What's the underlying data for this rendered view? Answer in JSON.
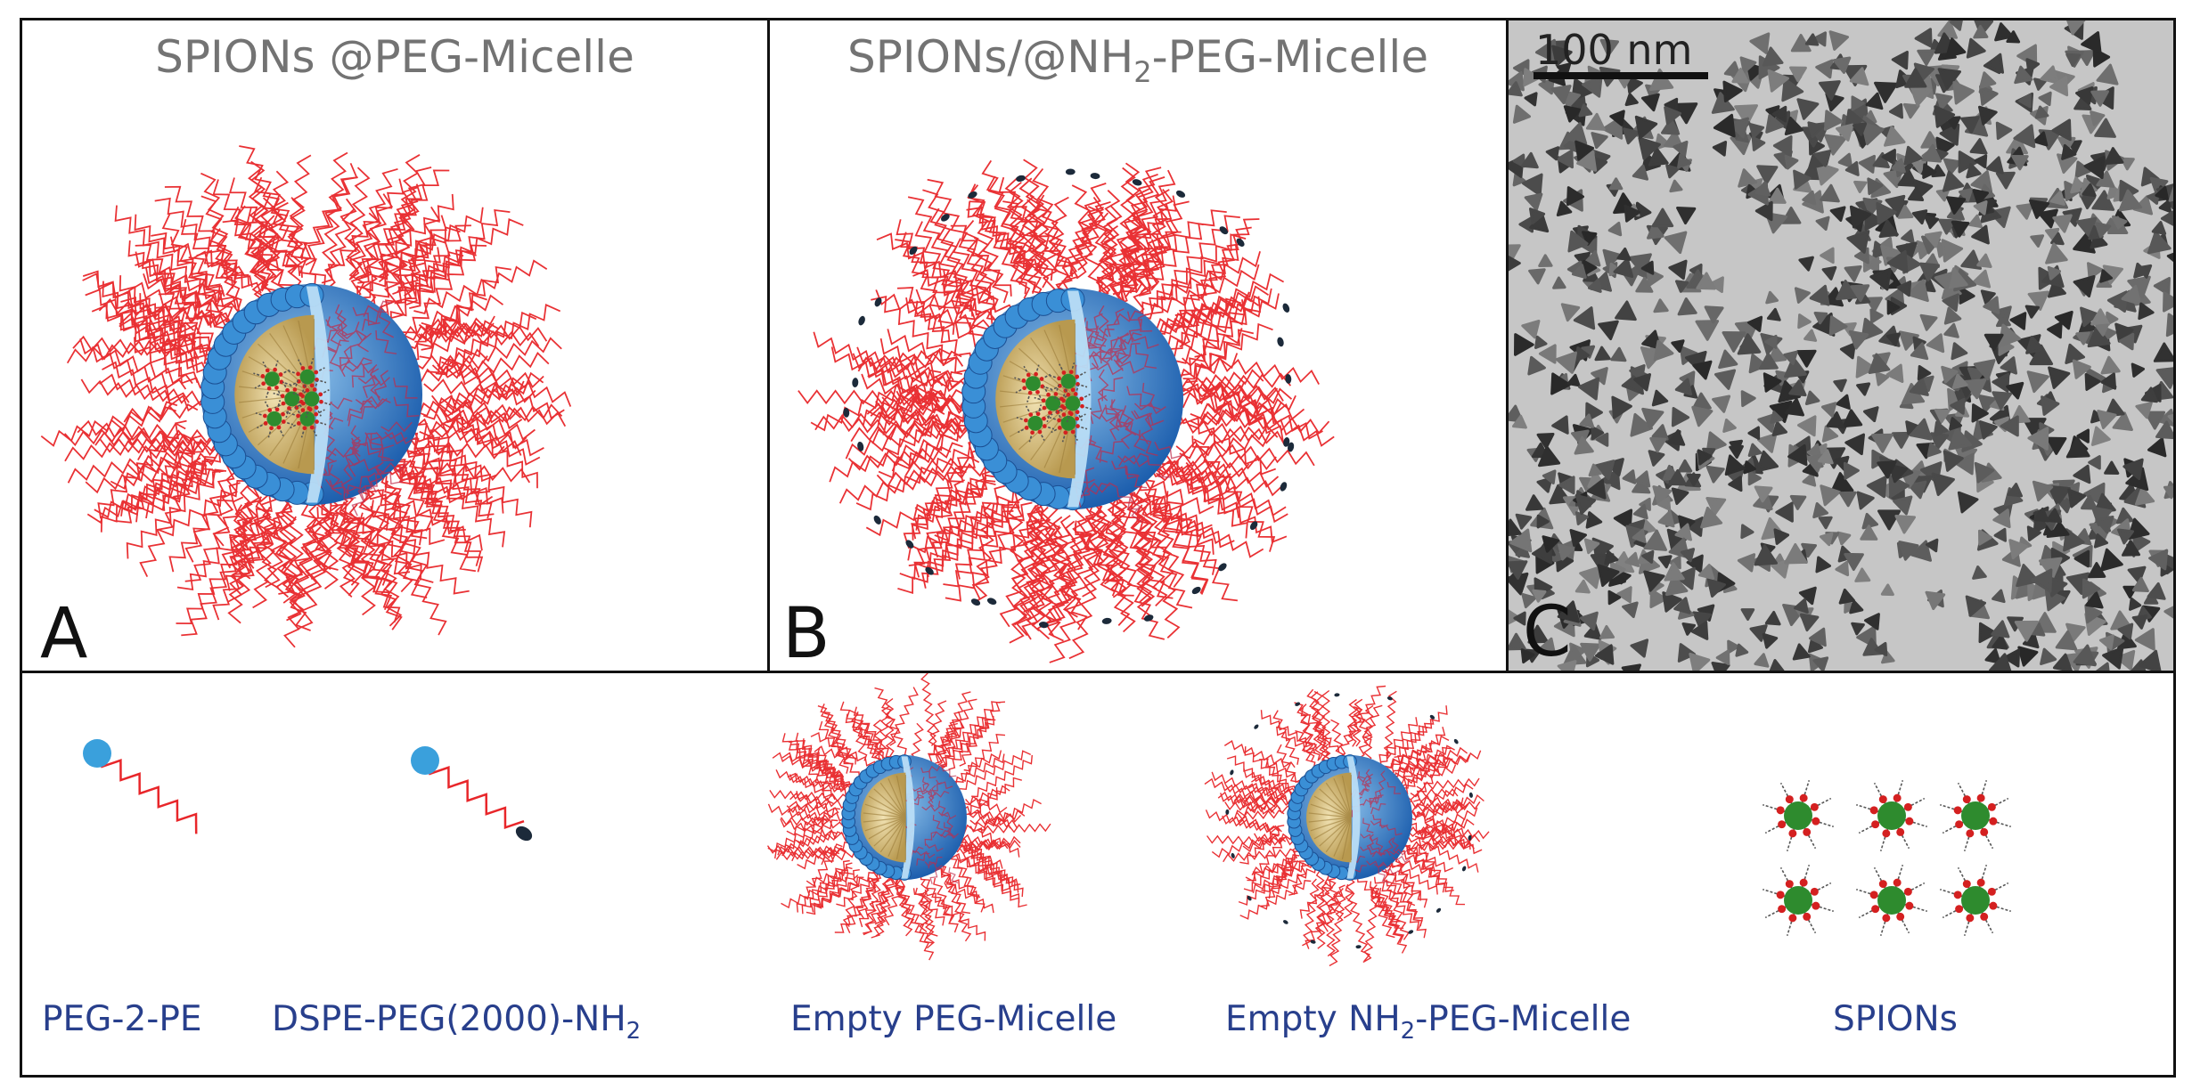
{
  "panels": {
    "a": {
      "title_pre": "SPIONs @PEG-Micelle",
      "letter": "A"
    },
    "b": {
      "title_pre": "SPIONs/@NH",
      "title_sub": "2",
      "title_post": "-PEG-Micelle",
      "letter": "B"
    },
    "c": {
      "scale_label": "100 nm",
      "letter": "C"
    }
  },
  "legend": {
    "peg": "PEG-2-PE",
    "dspe_pre": "DSPE-PEG(2000)-NH",
    "dspe_sub": "2",
    "empty_peg": "Empty PEG-Micelle",
    "empty_nh2_pre": "Empty NH",
    "empty_nh2_sub": "2",
    "empty_nh2_post": "-PEG-Micelle",
    "spions": "SPIONs"
  },
  "colors": {
    "peg_chain": "#e8262a",
    "shell_blue": "#2a78c4",
    "core_gold": "#d9bf7c",
    "spion_green": "#2e8b2e",
    "amine_tip": "#1c2a3a",
    "label_blue": "#283f8c"
  }
}
